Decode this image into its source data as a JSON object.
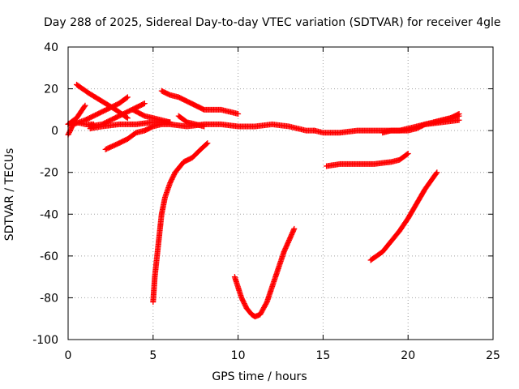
{
  "chart_data": {
    "type": "scatter",
    "title": "Day 288 of 2025, Sidereal Day-to-day VTEC variation (SDTVAR) for receiver 4gle",
    "xlabel": "GPS time / hours",
    "ylabel": "SDTVAR / TECUs",
    "xlim": [
      0,
      25
    ],
    "ylim": [
      -100,
      40
    ],
    "xticks": [
      0,
      5,
      10,
      15,
      20,
      25
    ],
    "yticks": [
      -100,
      -80,
      -60,
      -40,
      -20,
      0,
      20,
      40
    ],
    "grid": true,
    "marker": "plus",
    "color": "#ff0000",
    "series": [
      {
        "x": [
          0.5,
          1.2,
          2.0,
          2.8,
          3.5
        ],
        "y": [
          22,
          18,
          14,
          10,
          6
        ]
      },
      {
        "x": [
          0.0,
          0.5,
          1.0
        ],
        "y": [
          3,
          6,
          12
        ]
      },
      {
        "x": [
          0.0,
          0.3,
          1.0,
          2.0,
          3.0,
          3.5
        ],
        "y": [
          -2,
          3,
          5,
          9,
          13,
          16
        ]
      },
      {
        "x": [
          0.0,
          0.5,
          1.0,
          1.5
        ],
        "y": [
          3,
          4,
          3,
          3
        ]
      },
      {
        "x": [
          1.2,
          2.0,
          3.0,
          4.0,
          4.5
        ],
        "y": [
          2,
          3,
          7,
          11,
          13
        ]
      },
      {
        "x": [
          1.3,
          2.0,
          3.0,
          4.0,
          5.0,
          6.0
        ],
        "y": [
          1,
          2,
          3,
          3,
          4,
          4
        ]
      },
      {
        "x": [
          2.2,
          3.0,
          3.5,
          4.0,
          4.5,
          5.0,
          5.5,
          6.0,
          7.0,
          8.0,
          9.0,
          10.0,
          11.0,
          12.0,
          13.0,
          14.0,
          14.5
        ],
        "y": [
          -9,
          -6,
          -4,
          -1,
          0,
          2,
          3,
          3,
          2,
          3,
          3,
          2,
          2,
          3,
          2,
          0,
          0
        ]
      },
      {
        "x": [
          3.8,
          4.5,
          5.0,
          5.5,
          6.0
        ],
        "y": [
          10,
          7,
          6,
          5,
          4
        ]
      },
      {
        "x": [
          5.5,
          6.0,
          6.5,
          7.0,
          7.5,
          8.0,
          9.0,
          10.0
        ],
        "y": [
          19,
          17,
          16,
          14,
          12,
          10,
          10,
          8
        ]
      },
      {
        "x": [
          6.5,
          7.0,
          7.5,
          8.0
        ],
        "y": [
          7,
          4,
          3,
          2
        ]
      },
      {
        "x": [
          5.0,
          5.1,
          5.3,
          5.5,
          5.7,
          6.0,
          6.3,
          6.8,
          7.3,
          7.8,
          8.2
        ],
        "y": [
          -82,
          -70,
          -55,
          -40,
          -32,
          -25,
          -20,
          -15,
          -13,
          -9,
          -6
        ]
      },
      {
        "x": [
          9.8,
          10.2,
          10.5,
          10.8,
          11.0,
          11.3,
          11.7,
          12.2,
          12.7,
          13.3
        ],
        "y": [
          -70,
          -80,
          -85,
          -88,
          -89,
          -88,
          -82,
          -70,
          -58,
          -47
        ]
      },
      {
        "x": [
          14.5,
          15.0,
          16.0,
          17.0,
          18.0,
          19.0,
          20.0,
          20.5,
          21.0,
          21.5,
          22.0,
          22.5,
          23.0
        ],
        "y": [
          0,
          -1,
          -1,
          0,
          0,
          0,
          0,
          1,
          3,
          4,
          5,
          6,
          7
        ]
      },
      {
        "x": [
          15.2,
          16.0,
          17.0,
          18.0,
          19.0,
          19.5,
          20.0
        ],
        "y": [
          -17,
          -16,
          -16,
          -16,
          -15,
          -14,
          -11
        ]
      },
      {
        "x": [
          17.8,
          18.5,
          19.0,
          19.5,
          20.0,
          20.5,
          21.0,
          21.7
        ],
        "y": [
          -62,
          -58,
          -53,
          -48,
          -42,
          -35,
          -28,
          -20
        ]
      },
      {
        "x": [
          21.5,
          22.0,
          22.5,
          23.0
        ],
        "y": [
          4,
          5,
          6,
          8
        ]
      },
      {
        "x": [
          18.5,
          19.0,
          19.5,
          20.0,
          20.5,
          21.0,
          22.0,
          23.0
        ],
        "y": [
          -1,
          0,
          0,
          1,
          2,
          3,
          4,
          5
        ]
      }
    ]
  }
}
